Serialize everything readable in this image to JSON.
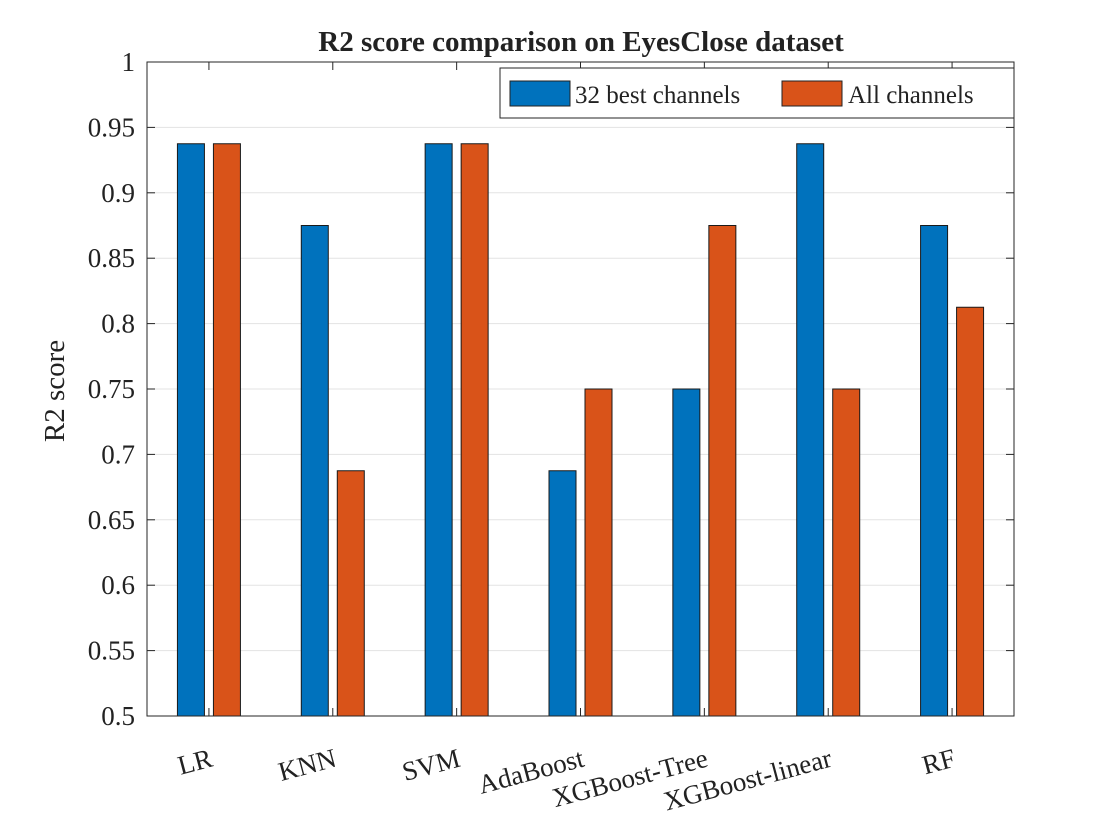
{
  "chart_data": {
    "type": "bar",
    "title": "R2 score comparison on EyesClose dataset",
    "xlabel": "",
    "ylabel": "R2 score",
    "ylim": [
      0.5,
      1
    ],
    "yticks": [
      0.5,
      0.55,
      0.6,
      0.65,
      0.7,
      0.75,
      0.8,
      0.85,
      0.9,
      0.95,
      1
    ],
    "ytick_labels": [
      "0.5",
      "0.55",
      "0.6",
      "0.65",
      "0.7",
      "0.75",
      "0.8",
      "0.85",
      "0.9",
      "0.95",
      "1"
    ],
    "grid": true,
    "legend_position": "top-right",
    "categories": [
      "LR",
      "KNN",
      "SVM",
      "AdaBoost",
      "XGBoost-Tree",
      "XGBoost-linear",
      "RF"
    ],
    "series": [
      {
        "name": "32 best channels",
        "color": "#0072BD",
        "values": [
          0.9375,
          0.875,
          0.9375,
          0.6875,
          0.75,
          0.9375,
          0.875
        ]
      },
      {
        "name": "All channels",
        "color": "#D95319",
        "values": [
          0.9375,
          0.6875,
          0.9375,
          0.75,
          0.875,
          0.75,
          0.8125
        ]
      }
    ]
  }
}
